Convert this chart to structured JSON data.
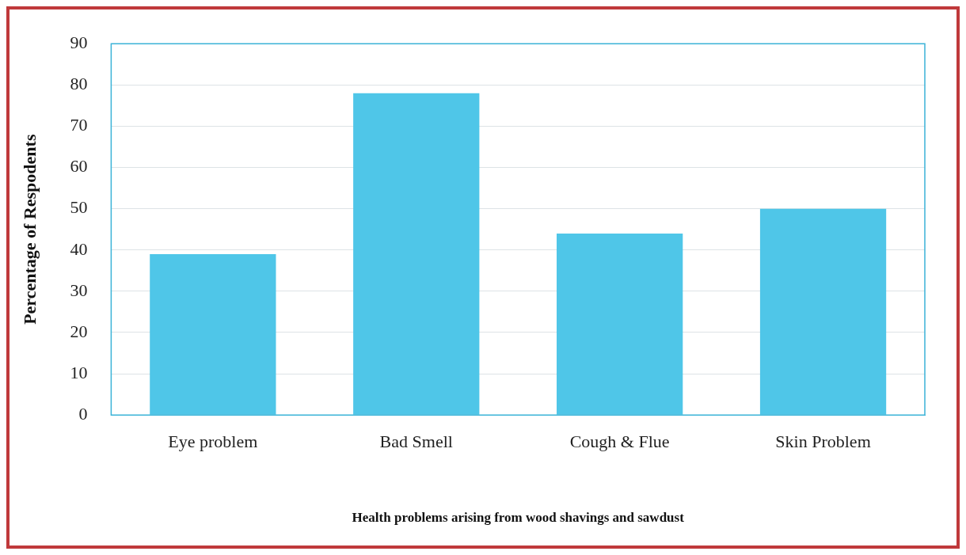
{
  "chart_data": {
    "type": "bar",
    "xlabel": "Health problems arising from wood shavings and sawdust",
    "ylabel": "Percentage of Respodents",
    "categories": [
      "Eye problem",
      "Bad Smell",
      "Cough & Flue",
      "Skin Problem"
    ],
    "values": [
      39,
      78,
      44,
      50
    ],
    "color": "#4fc6e8",
    "ylim": [
      0,
      90
    ],
    "yticks": [
      0,
      10,
      20,
      30,
      40,
      50,
      60,
      70,
      80,
      90
    ],
    "grid": "y"
  }
}
